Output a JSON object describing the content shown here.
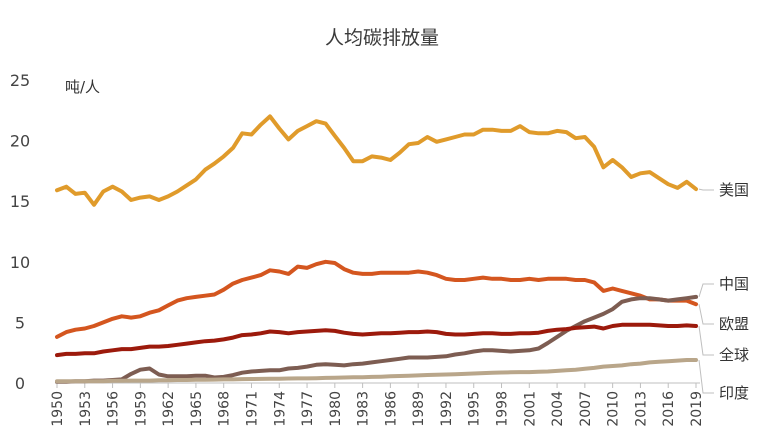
{
  "chart_data": {
    "type": "line",
    "title": "人均碳排放量",
    "unit_label": "吨/人",
    "xlabel": "",
    "ylabel": "",
    "ylim": [
      0,
      25
    ],
    "yticks": [
      "0",
      "5",
      "10",
      "15",
      "20",
      "25"
    ],
    "xlim": [
      1950,
      2019
    ],
    "xticks": [
      "1950",
      "1953",
      "1956",
      "1959",
      "1962",
      "1965",
      "1968",
      "1971",
      "1974",
      "1977",
      "1980",
      "1983",
      "1986",
      "1989",
      "1992",
      "1995",
      "1998",
      "2001",
      "2004",
      "2007",
      "2010",
      "2013",
      "2016",
      "2019"
    ],
    "grid": false,
    "x": [
      1950,
      1951,
      1952,
      1953,
      1954,
      1955,
      1956,
      1957,
      1958,
      1959,
      1960,
      1961,
      1962,
      1963,
      1964,
      1965,
      1966,
      1967,
      1968,
      1969,
      1970,
      1971,
      1972,
      1973,
      1974,
      1975,
      1976,
      1977,
      1978,
      1979,
      1980,
      1981,
      1982,
      1983,
      1984,
      1985,
      1986,
      1987,
      1988,
      1989,
      1990,
      1991,
      1992,
      1993,
      1994,
      1995,
      1996,
      1997,
      1998,
      1999,
      2000,
      2001,
      2002,
      2003,
      2004,
      2005,
      2006,
      2007,
      2008,
      2009,
      2010,
      2011,
      2012,
      2013,
      2014,
      2015,
      2016,
      2017,
      2018,
      2019
    ],
    "series": [
      {
        "name": "美国",
        "color": "#e09b2b",
        "values": [
          15.9,
          16.2,
          15.6,
          15.7,
          14.7,
          15.8,
          16.2,
          15.8,
          15.1,
          15.3,
          15.4,
          15.1,
          15.4,
          15.8,
          16.3,
          16.8,
          17.6,
          18.1,
          18.7,
          19.4,
          20.6,
          20.5,
          21.3,
          22.0,
          21.0,
          20.1,
          20.8,
          21.2,
          21.6,
          21.4,
          20.4,
          19.4,
          18.3,
          18.3,
          18.7,
          18.6,
          18.4,
          19.0,
          19.7,
          19.8,
          20.3,
          19.9,
          20.1,
          20.3,
          20.5,
          20.5,
          20.9,
          20.9,
          20.8,
          20.8,
          21.2,
          20.7,
          20.6,
          20.6,
          20.8,
          20.7,
          20.2,
          20.3,
          19.5,
          17.8,
          18.4,
          17.8,
          17.0,
          17.3,
          17.4,
          16.9,
          16.4,
          16.1,
          16.6,
          16.0
        ]
      },
      {
        "name": "欧盟",
        "color": "#d4561f",
        "values": [
          3.8,
          4.2,
          4.4,
          4.5,
          4.7,
          5.0,
          5.3,
          5.5,
          5.4,
          5.5,
          5.8,
          6.0,
          6.4,
          6.8,
          7.0,
          7.1,
          7.2,
          7.3,
          7.7,
          8.2,
          8.5,
          8.7,
          8.9,
          9.3,
          9.2,
          9.0,
          9.6,
          9.5,
          9.8,
          10.0,
          9.9,
          9.4,
          9.1,
          9.0,
          9.0,
          9.1,
          9.1,
          9.1,
          9.1,
          9.2,
          9.1,
          8.9,
          8.6,
          8.5,
          8.5,
          8.6,
          8.7,
          8.6,
          8.6,
          8.5,
          8.5,
          8.6,
          8.5,
          8.6,
          8.6,
          8.6,
          8.5,
          8.5,
          8.3,
          7.6,
          7.8,
          7.6,
          7.4,
          7.2,
          6.9,
          6.9,
          6.8,
          6.8,
          6.8,
          6.5
        ]
      },
      {
        "name": "中国",
        "color": "#7d5d52",
        "values": [
          0.1,
          0.1,
          0.15,
          0.15,
          0.2,
          0.2,
          0.25,
          0.3,
          0.75,
          1.1,
          1.2,
          0.7,
          0.55,
          0.55,
          0.55,
          0.6,
          0.6,
          0.45,
          0.5,
          0.65,
          0.85,
          0.95,
          1.0,
          1.05,
          1.05,
          1.2,
          1.25,
          1.35,
          1.5,
          1.55,
          1.5,
          1.45,
          1.55,
          1.6,
          1.7,
          1.8,
          1.9,
          2.0,
          2.1,
          2.1,
          2.1,
          2.15,
          2.2,
          2.35,
          2.45,
          2.6,
          2.7,
          2.7,
          2.65,
          2.6,
          2.65,
          2.7,
          2.85,
          3.3,
          3.8,
          4.3,
          4.7,
          5.1,
          5.4,
          5.7,
          6.1,
          6.7,
          6.9,
          7.0,
          7.0,
          6.9,
          6.8,
          6.9,
          7.0,
          7.1
        ]
      },
      {
        "name": "全球",
        "color": "#9c1a0c",
        "values": [
          2.3,
          2.4,
          2.4,
          2.45,
          2.45,
          2.6,
          2.7,
          2.8,
          2.8,
          2.9,
          3.0,
          3.0,
          3.05,
          3.15,
          3.25,
          3.35,
          3.45,
          3.5,
          3.6,
          3.75,
          3.95,
          4.0,
          4.1,
          4.25,
          4.2,
          4.1,
          4.2,
          4.25,
          4.3,
          4.35,
          4.3,
          4.15,
          4.05,
          4.0,
          4.05,
          4.1,
          4.1,
          4.15,
          4.2,
          4.2,
          4.25,
          4.2,
          4.05,
          4.0,
          4.0,
          4.05,
          4.1,
          4.1,
          4.05,
          4.05,
          4.1,
          4.1,
          4.15,
          4.3,
          4.4,
          4.45,
          4.55,
          4.6,
          4.65,
          4.5,
          4.7,
          4.8,
          4.8,
          4.8,
          4.8,
          4.75,
          4.7,
          4.7,
          4.75,
          4.7
        ]
      },
      {
        "name": "印度",
        "color": "#b9a68a",
        "values": [
          0.15,
          0.15,
          0.15,
          0.15,
          0.15,
          0.15,
          0.18,
          0.18,
          0.2,
          0.2,
          0.2,
          0.22,
          0.23,
          0.25,
          0.25,
          0.27,
          0.27,
          0.28,
          0.3,
          0.3,
          0.32,
          0.33,
          0.34,
          0.35,
          0.35,
          0.37,
          0.38,
          0.38,
          0.4,
          0.42,
          0.43,
          0.45,
          0.47,
          0.48,
          0.5,
          0.52,
          0.55,
          0.58,
          0.6,
          0.63,
          0.66,
          0.68,
          0.7,
          0.72,
          0.75,
          0.78,
          0.82,
          0.85,
          0.87,
          0.88,
          0.9,
          0.9,
          0.92,
          0.95,
          1.0,
          1.05,
          1.1,
          1.17,
          1.25,
          1.35,
          1.4,
          1.45,
          1.55,
          1.6,
          1.7,
          1.75,
          1.8,
          1.85,
          1.9,
          1.9
        ]
      }
    ]
  }
}
